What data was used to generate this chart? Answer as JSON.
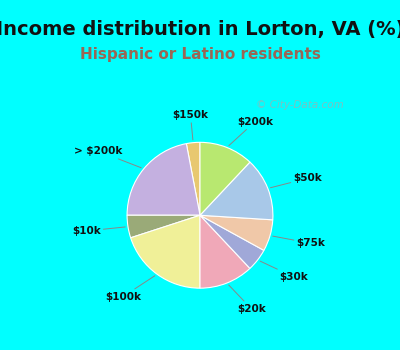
{
  "title": "Income distribution in Lorton, VA (%)",
  "subtitle": "Hispanic or Latino residents",
  "watermark": "© City-Data.com",
  "background_top": "#00FFFF",
  "background_chart_color": "#d8ede0",
  "labels": [
    "$150k",
    "> $200k",
    "$10k",
    "$100k",
    "$20k",
    "$30k",
    "$75k",
    "$50k",
    "$200k"
  ],
  "values": [
    3,
    22,
    5,
    20,
    12,
    5,
    7,
    14,
    12
  ],
  "colors": [
    "#e8c870",
    "#c4b0e0",
    "#9aaa78",
    "#f0f098",
    "#f0a8b8",
    "#a0a8d8",
    "#f0c8a8",
    "#a8c8e8",
    "#b8e870"
  ],
  "startangle": 90,
  "label_fontsize": 7.5,
  "title_fontsize": 14,
  "subtitle_fontsize": 11,
  "title_color": "#111111",
  "subtitle_color": "#996655"
}
